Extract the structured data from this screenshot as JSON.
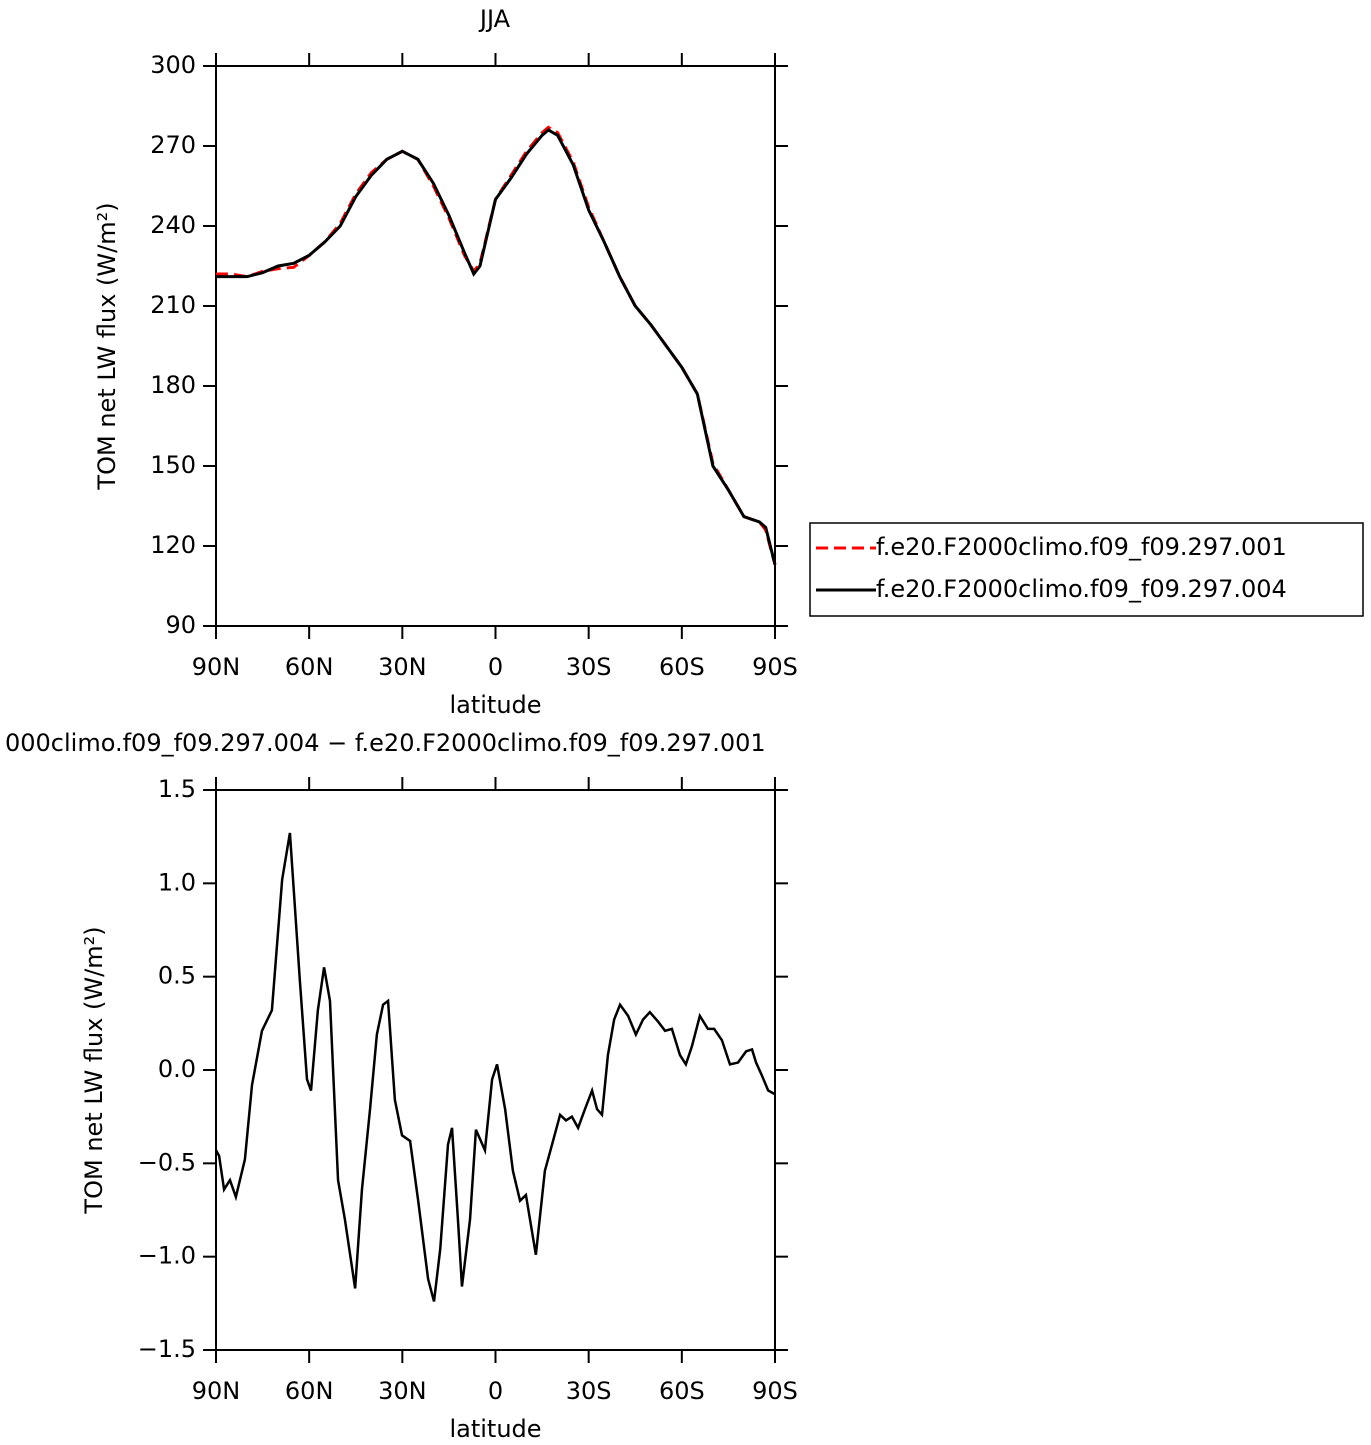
{
  "chart_data": [
    {
      "type": "line",
      "title": "JJA",
      "x_label": "latitude",
      "y_label": "TOM net LW flux (W/m²)",
      "x": [
        90,
        85,
        80,
        75,
        70,
        65,
        60,
        55,
        50,
        45,
        40,
        35,
        30,
        25,
        20,
        15,
        10,
        7,
        5,
        0,
        -5,
        -10,
        -15,
        -17,
        -20,
        -25,
        -30,
        -35,
        -40,
        -45,
        -50,
        -55,
        -60,
        -65,
        -70,
        -75,
        -80,
        -85,
        -87,
        -90
      ],
      "series": [
        {
          "name": "f.e20.F2000climo.f09_f09.297.001",
          "color": "#ff0000",
          "linestyle": "dashed",
          "values": [
            222,
            222,
            221,
            223,
            224,
            224.5,
            229,
            234,
            241,
            252,
            260,
            265,
            268,
            265,
            255,
            243,
            229,
            223,
            226,
            250,
            259,
            268,
            275,
            277,
            275,
            264,
            247,
            234,
            221,
            210,
            203,
            195,
            187,
            177,
            151,
            141,
            131,
            129,
            126,
            113
          ]
        },
        {
          "name": "f.e20.F2000climo.f09_f09.297.004",
          "color": "#000000",
          "linestyle": "solid",
          "values": [
            221,
            221,
            221,
            222.5,
            225,
            226,
            229,
            234,
            240,
            251,
            259,
            265,
            268,
            265,
            256,
            244,
            230,
            222,
            225,
            250,
            258,
            267,
            274,
            276,
            274,
            263,
            246,
            234,
            221,
            210,
            203,
            195,
            187,
            177,
            150,
            141,
            131,
            129,
            127,
            113
          ]
        }
      ],
      "xlim": [
        90,
        -90
      ],
      "xticks": [
        {
          "value": 90,
          "label": "90N"
        },
        {
          "value": 60,
          "label": "60N"
        },
        {
          "value": 30,
          "label": "30N"
        },
        0,
        {
          "value": -30,
          "label": "30S"
        },
        {
          "value": -60,
          "label": "60S"
        },
        {
          "value": -90,
          "label": "90S"
        }
      ],
      "ylim": [
        90,
        300
      ],
      "yticks": [
        90,
        120,
        150,
        180,
        210,
        240,
        270,
        300
      ],
      "legend": "right"
    },
    {
      "type": "line",
      "title": "000climo.f09_f09.297.004 − f.e20.F2000climo.f09_f09.297.001",
      "x_label": "latitude",
      "y_label": "TOM net LW flux (W/m²)",
      "x": [
        90,
        89,
        87.4,
        85.5,
        83.6,
        80.7,
        78.4,
        75.2,
        72,
        68.7,
        66.2,
        63,
        60.7,
        59.4,
        57.2,
        55.2,
        53.3,
        50.7,
        48.5,
        45.2,
        43,
        40.4,
        38.2,
        36.2,
        34.6,
        32.4,
        30.1,
        27.5,
        24.9,
        21.7,
        19.8,
        17.8,
        15.3,
        14,
        12.1,
        10.8,
        8.2,
        6.3,
        3.4,
        1.1,
        -0.5,
        -3.1,
        -5.6,
        -7.9,
        -9.8,
        -13,
        -15.9,
        -18.2,
        -20.8,
        -22.7,
        -24.6,
        -26.6,
        -28.8,
        -31.1,
        -32.7,
        -34.3,
        -36.2,
        -38.2,
        -40.1,
        -42.7,
        -45.2,
        -47.5,
        -49.7,
        -52.3,
        -54.6,
        -56.8,
        -59.4,
        -61.3,
        -63.3,
        -65.8,
        -68.4,
        -70.4,
        -72.9,
        -75.5,
        -78.1,
        -80.7,
        -82.6,
        -83.9,
        -85.8,
        -87.8,
        -90
      ],
      "values": [
        -0.43,
        -0.46,
        -0.64,
        -0.59,
        -0.68,
        -0.48,
        -0.08,
        0.21,
        0.32,
        1.02,
        1.27,
        0.48,
        -0.05,
        -0.11,
        0.32,
        0.55,
        0.37,
        -0.59,
        -0.8,
        -1.17,
        -0.64,
        -0.21,
        0.19,
        0.35,
        0.37,
        -0.16,
        -0.35,
        -0.38,
        -0.7,
        -1.12,
        -1.24,
        -0.96,
        -0.4,
        -0.31,
        -0.8,
        -1.16,
        -0.8,
        -0.32,
        -0.43,
        -0.05,
        0.03,
        -0.21,
        -0.54,
        -0.7,
        -0.67,
        -0.99,
        -0.54,
        -0.4,
        -0.24,
        -0.27,
        -0.25,
        -0.31,
        -0.21,
        -0.11,
        -0.21,
        -0.24,
        0.08,
        0.27,
        0.35,
        0.29,
        0.19,
        0.27,
        0.31,
        0.26,
        0.21,
        0.22,
        0.08,
        0.03,
        0.13,
        0.29,
        0.22,
        0.22,
        0.16,
        0.03,
        0.04,
        0.1,
        0.11,
        0.04,
        -0.03,
        -0.11,
        -0.13
      ],
      "color": "#000000",
      "xlim": [
        90,
        -90
      ],
      "xticks": [
        {
          "value": 90,
          "label": "90N"
        },
        {
          "value": 60,
          "label": "60N"
        },
        {
          "value": 30,
          "label": "30N"
        },
        0,
        {
          "value": -30,
          "label": "30S"
        },
        {
          "value": -60,
          "label": "60S"
        },
        {
          "value": -90,
          "label": "90S"
        }
      ],
      "ylim": [
        -1.5,
        1.5
      ],
      "yticks": [
        {
          "value": -1.5,
          "label": "−1.5"
        },
        {
          "value": -1,
          "label": "−1.0"
        },
        {
          "value": -0.5,
          "label": "−0.5"
        },
        {
          "value": 0,
          "label": "0.0"
        },
        {
          "value": 0.5,
          "label": "0.5"
        },
        {
          "value": 1,
          "label": "1.0"
        },
        1.5
      ]
    }
  ]
}
